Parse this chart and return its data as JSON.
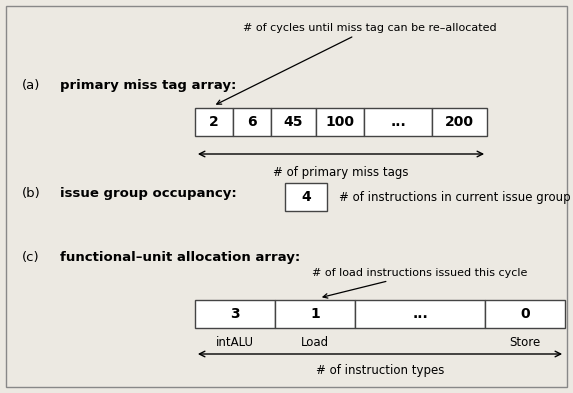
{
  "fig_bg": "#ece9e2",
  "border_color": "#888888",
  "a_label": "(a)",
  "a_title": "primary miss tag array:",
  "a_cells": [
    "2",
    "6",
    "45",
    "100",
    "...",
    "200"
  ],
  "a_annotation": "# of cycles until miss tag can be re–allocated",
  "a_bottom_label": "# of primary miss tags",
  "b_label": "(b)",
  "b_title": "issue group occupancy:",
  "b_cell": "4",
  "b_annotation": "# of instructions in current issue group",
  "c_label": "(c)",
  "c_title": "functional–unit allocation array:",
  "c_cells": [
    "3",
    "1",
    "...",
    "0"
  ],
  "c_annotation": "# of load instructions issued this cycle",
  "c_bottom_labels": [
    "intALU",
    "Load",
    "",
    "Store"
  ],
  "c_bottom_label": "# of instruction types"
}
